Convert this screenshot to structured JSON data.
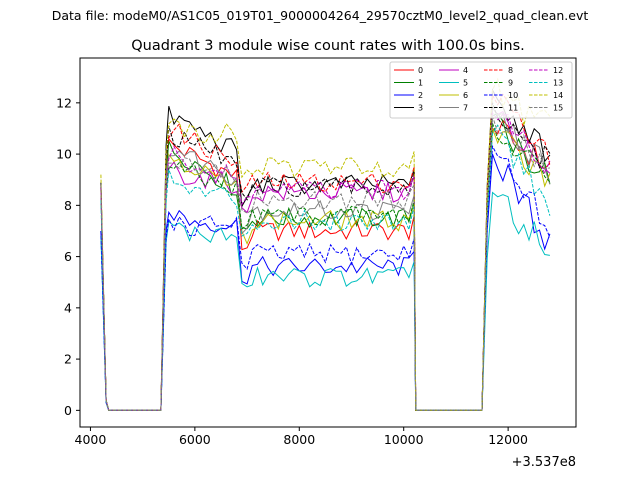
{
  "suptitle": "Data file: modeM0/AS1C05_019T01_9000004264_29570cztM0_level2_quad_clean.evt",
  "chart_data": {
    "type": "line",
    "title": "Quadrant 3 module wise count rates with 100.0s bins.",
    "xlabel": "",
    "ylabel": "",
    "x_offset_label": "+3.537e8",
    "xlim": [
      3800,
      13300
    ],
    "ylim": [
      -0.65,
      13.75
    ],
    "xticks": [
      4000,
      6000,
      8000,
      10000,
      12000
    ],
    "xtick_labels": [
      "4000",
      "6000",
      "8000",
      "10000",
      "12000"
    ],
    "yticks": [
      0,
      2,
      4,
      6,
      8,
      10,
      12
    ],
    "ytick_labels": [
      "0",
      "2",
      "4",
      "6",
      "8",
      "10",
      "12"
    ],
    "grid": false,
    "legend_position": "top-right",
    "legend_columns": 4,
    "series": [
      {
        "name": "0",
        "color": "#ff0000",
        "style": "solid",
        "levels": [
          8.6,
          10.4,
          9.0,
          6.8,
          7.0,
          11.0,
          9.5
        ]
      },
      {
        "name": "1",
        "color": "#008000",
        "style": "solid",
        "levels": [
          8.7,
          10.2,
          8.5,
          7.5,
          7.5,
          11.5,
          9.0
        ]
      },
      {
        "name": "2",
        "color": "#0000ff",
        "style": "solid",
        "levels": [
          7.0,
          7.8,
          7.2,
          5.7,
          5.6,
          10.0,
          6.5
        ]
      },
      {
        "name": "3",
        "color": "#000000",
        "style": "solid",
        "levels": [
          8.9,
          11.5,
          10.0,
          8.5,
          8.8,
          12.5,
          9.8
        ]
      },
      {
        "name": "4",
        "color": "#bf00bf",
        "style": "solid",
        "levels": [
          8.6,
          9.5,
          8.8,
          8.0,
          8.5,
          11.8,
          9.5
        ]
      },
      {
        "name": "5",
        "color": "#00bfbf",
        "style": "solid",
        "levels": [
          6.8,
          7.3,
          6.8,
          5.0,
          5.2,
          8.5,
          6.2
        ]
      },
      {
        "name": "6",
        "color": "#bfbf00",
        "style": "solid",
        "levels": [
          8.7,
          10.0,
          8.5,
          7.3,
          7.4,
          11.0,
          9.0
        ]
      },
      {
        "name": "7",
        "color": "#808080",
        "style": "solid",
        "levels": [
          8.8,
          10.3,
          9.0,
          7.6,
          7.8,
          11.8,
          9.2
        ]
      },
      {
        "name": "8",
        "color": "#ff0000",
        "style": "dashed",
        "levels": [
          8.8,
          11.0,
          9.5,
          8.9,
          8.9,
          12.3,
          10.0
        ]
      },
      {
        "name": "9",
        "color": "#008000",
        "style": "dashed",
        "levels": [
          8.7,
          9.6,
          8.6,
          7.5,
          7.6,
          11.2,
          9.2
        ]
      },
      {
        "name": "10",
        "color": "#0000ff",
        "style": "dashed",
        "levels": [
          7.0,
          7.5,
          7.4,
          6.0,
          6.1,
          10.3,
          7.0
        ]
      },
      {
        "name": "11",
        "color": "#000000",
        "style": "dashed",
        "levels": [
          8.8,
          10.8,
          9.6,
          8.6,
          8.7,
          12.0,
          9.6
        ]
      },
      {
        "name": "12",
        "color": "#bf00bf",
        "style": "dashed",
        "levels": [
          8.7,
          10.0,
          9.0,
          8.5,
          8.6,
          11.6,
          9.6
        ]
      },
      {
        "name": "13",
        "color": "#00bfbf",
        "style": "dashed",
        "levels": [
          8.2,
          9.0,
          8.2,
          7.4,
          7.4,
          10.8,
          8.0
        ]
      },
      {
        "name": "14",
        "color": "#bfbf00",
        "style": "dashed",
        "levels": [
          9.2,
          11.2,
          10.8,
          9.5,
          9.5,
          12.5,
          11.0
        ]
      },
      {
        "name": "15",
        "color": "#808080",
        "style": "dashed",
        "levels": [
          8.8,
          10.0,
          9.0,
          8.0,
          8.2,
          11.5,
          9.3
        ]
      }
    ],
    "segments": [
      {
        "x_start": 4200,
        "x_end": 10200
      },
      {
        "x_start": 11600,
        "x_end": 12800
      }
    ]
  }
}
